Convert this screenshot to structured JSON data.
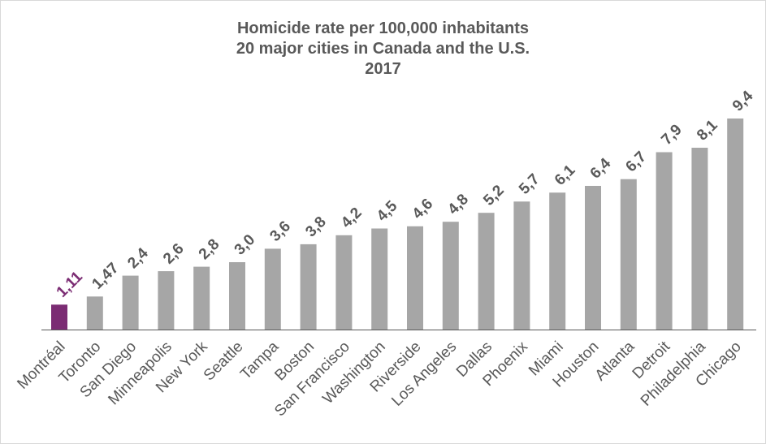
{
  "chart_data": {
    "type": "bar",
    "title": [
      "Homicide rate per 100,000 inhabitants",
      "20 major cities in Canada and the U.S.",
      "2017"
    ],
    "xlabel": "",
    "ylabel": "",
    "ylim": [
      0,
      9.4
    ],
    "grid": false,
    "legend": "none",
    "categories": [
      "Montréal",
      "Toronto",
      "San Diego",
      "Minneapolis",
      "New York",
      "Seattle",
      "Tampa",
      "Boston",
      "San Francisco",
      "Washington",
      "Riverside",
      "Los Angeles",
      "Dallas",
      "Phoenix",
      "Miami",
      "Houston",
      "Atlanta",
      "Detroit",
      "Philadelphia",
      "Chicago"
    ],
    "values": [
      1.11,
      1.47,
      2.4,
      2.6,
      2.8,
      3.0,
      3.6,
      3.8,
      4.2,
      4.5,
      4.6,
      4.8,
      5.2,
      5.7,
      6.1,
      6.4,
      6.7,
      7.9,
      8.1,
      9.4
    ],
    "value_labels": [
      "1,11",
      "1,47",
      "2,4",
      "2,6",
      "2,8",
      "3,0",
      "3,6",
      "3,8",
      "4,2",
      "4,5",
      "4,6",
      "4,8",
      "5,2",
      "5,7",
      "6,1",
      "6,4",
      "6,7",
      "7,9",
      "8,1",
      "9,4"
    ],
    "colors": {
      "highlight": "#7b2c73",
      "default": "#a6a6a6",
      "label_default": "#595959",
      "axis": "#595959"
    },
    "highlight_index": 0
  }
}
